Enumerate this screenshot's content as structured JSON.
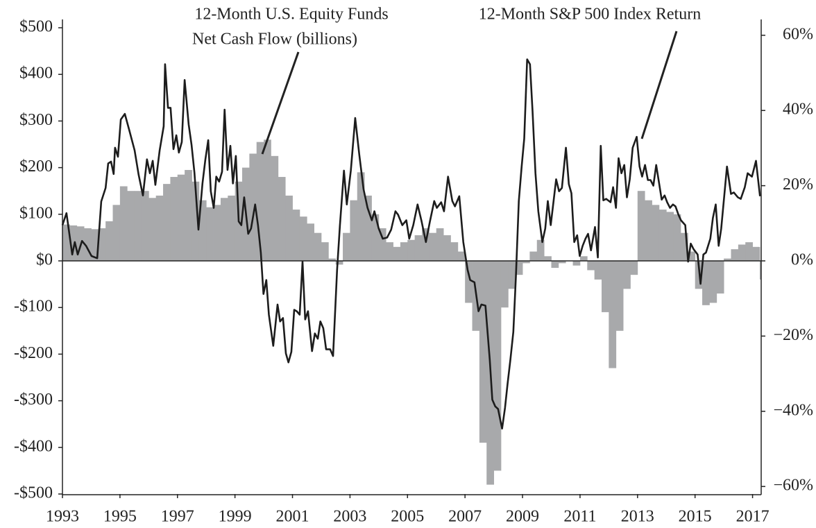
{
  "chart_data": {
    "type": "bar",
    "annotations": [
      {
        "lines": [
          "12-Month U.S. Equity Funds",
          "Net Cash Flow (billions)"
        ]
      },
      {
        "lines": [
          "12-Month S&P 500 Index Return"
        ]
      }
    ],
    "xlim": [
      1993,
      2017.3
    ],
    "xticks": [
      1993,
      1995,
      1997,
      1999,
      2001,
      2003,
      2005,
      2007,
      2009,
      2011,
      2013,
      2015,
      2017
    ],
    "ylim": [
      -500,
      500
    ],
    "yticks": [
      {
        "value": 500,
        "label": "$500"
      },
      {
        "value": 400,
        "label": "$400"
      },
      {
        "value": 300,
        "label": "$300"
      },
      {
        "value": 200,
        "label": "$200"
      },
      {
        "value": 100,
        "label": "$100"
      },
      {
        "value": 0,
        "label": "$0"
      },
      {
        "value": -100,
        "label": "-$100"
      },
      {
        "value": -200,
        "label": "-$200"
      },
      {
        "value": -300,
        "label": "-$300"
      },
      {
        "value": -400,
        "label": "-$400"
      },
      {
        "value": -500,
        "label": "-$500"
      }
    ],
    "y2lim": [
      -62,
      62
    ],
    "y2ticks": [
      {
        "value": 60,
        "label": "60%"
      },
      {
        "value": 40,
        "label": "40%"
      },
      {
        "value": 20,
        "label": "20%"
      },
      {
        "value": 0,
        "label": "0%"
      },
      {
        "value": -20,
        "label": "−20%"
      },
      {
        "value": -40,
        "label": "−40%"
      },
      {
        "value": -60,
        "label": "−60%"
      }
    ],
    "series": [
      {
        "type": "bar",
        "color": "#a8a9ab",
        "x": [
          1993.0,
          1993.25,
          1993.5,
          1993.75,
          1994.0,
          1994.25,
          1994.5,
          1994.75,
          1995.0,
          1995.25,
          1995.5,
          1995.75,
          1996.0,
          1996.25,
          1996.5,
          1996.75,
          1997.0,
          1997.25,
          1997.5,
          1997.75,
          1998.0,
          1998.25,
          1998.5,
          1998.75,
          1999.0,
          1999.25,
          1999.5,
          1999.75,
          2000.0,
          2000.25,
          2000.5,
          2000.75,
          2001.0,
          2001.25,
          2001.5,
          2001.75,
          2002.0,
          2002.25,
          2002.5,
          2002.75,
          2003.0,
          2003.25,
          2003.5,
          2003.75,
          2004.0,
          2004.25,
          2004.5,
          2004.75,
          2005.0,
          2005.25,
          2005.5,
          2005.75,
          2006.0,
          2006.25,
          2006.5,
          2006.75,
          2007.0,
          2007.25,
          2007.5,
          2007.75,
          2008.0,
          2008.25,
          2008.5,
          2008.75,
          2009.0,
          2009.25,
          2009.5,
          2009.75,
          2010.0,
          2010.25,
          2010.5,
          2010.75,
          2011.0,
          2011.25,
          2011.5,
          2011.75,
          2012.0,
          2012.25,
          2012.5,
          2012.75,
          2013.0,
          2013.25,
          2013.5,
          2013.75,
          2014.0,
          2014.25,
          2014.5,
          2014.75,
          2015.0,
          2015.25,
          2015.5,
          2015.75,
          2016.0,
          2016.25,
          2016.5,
          2016.75,
          2017.0,
          2017.25
        ],
        "values": [
          78,
          76,
          74,
          70,
          68,
          70,
          85,
          120,
          160,
          150,
          150,
          150,
          135,
          140,
          165,
          180,
          185,
          195,
          170,
          130,
          115,
          120,
          135,
          140,
          170,
          200,
          230,
          255,
          260,
          225,
          180,
          140,
          110,
          95,
          80,
          60,
          40,
          5,
          -8,
          60,
          130,
          190,
          140,
          100,
          70,
          40,
          30,
          40,
          45,
          55,
          70,
          60,
          70,
          55,
          40,
          20,
          -90,
          -150,
          -390,
          -480,
          -450,
          -100,
          -60,
          -30,
          -5,
          20,
          45,
          10,
          -15,
          -5,
          0,
          -10,
          10,
          -20,
          -40,
          -110,
          -230,
          -150,
          -60,
          -30,
          150,
          130,
          120,
          110,
          105,
          100,
          60,
          20,
          -60,
          -95,
          -90,
          -70,
          5,
          25,
          35,
          40,
          30,
          -40
        ]
      },
      {
        "type": "line",
        "axis": "y2",
        "color": "#1c1c1c",
        "x": [
          1993.0,
          1993.14,
          1993.34,
          1993.43,
          1993.53,
          1993.68,
          1993.82,
          1994.01,
          1994.21,
          1994.35,
          1994.5,
          1994.59,
          1994.69,
          1994.78,
          1994.83,
          1994.93,
          1995.03,
          1995.17,
          1995.32,
          1995.51,
          1995.65,
          1995.8,
          1995.94,
          1996.04,
          1996.14,
          1996.23,
          1996.38,
          1996.52,
          1996.57,
          1996.67,
          1996.76,
          1996.86,
          1996.96,
          1997.05,
          1997.15,
          1997.25,
          1997.39,
          1997.49,
          1997.59,
          1997.73,
          1997.87,
          1997.97,
          1998.07,
          1998.16,
          1998.26,
          1998.35,
          1998.45,
          1998.55,
          1998.64,
          1998.74,
          1998.84,
          1998.93,
          1999.03,
          1999.13,
          1999.22,
          1999.32,
          1999.46,
          1999.56,
          1999.7,
          1999.8,
          1999.9,
          1999.99,
          2000.09,
          2000.18,
          2000.33,
          2000.48,
          2000.57,
          2000.67,
          2000.77,
          2000.86,
          2000.96,
          2001.06,
          2001.15,
          2001.25,
          2001.35,
          2001.44,
          2001.54,
          2001.68,
          2001.78,
          2001.88,
          2001.97,
          2002.07,
          2002.17,
          2002.31,
          2002.41,
          2002.55,
          2002.65,
          2002.79,
          2002.89,
          2003.03,
          2003.18,
          2003.32,
          2003.47,
          2003.61,
          2003.76,
          2003.85,
          2004.0,
          2004.14,
          2004.29,
          2004.43,
          2004.58,
          2004.67,
          2004.82,
          2004.96,
          2005.06,
          2005.2,
          2005.35,
          2005.49,
          2005.64,
          2005.78,
          2005.93,
          2006.02,
          2006.17,
          2006.27,
          2006.41,
          2006.56,
          2006.65,
          2006.8,
          2006.94,
          2007.09,
          2007.18,
          2007.33,
          2007.47,
          2007.57,
          2007.71,
          2007.86,
          2007.95,
          2008.05,
          2008.15,
          2008.29,
          2008.39,
          2008.48,
          2008.58,
          2008.68,
          2008.77,
          2008.87,
          2008.97,
          2009.06,
          2009.16,
          2009.26,
          2009.35,
          2009.45,
          2009.55,
          2009.69,
          2009.79,
          2009.88,
          2009.98,
          2010.08,
          2010.17,
          2010.27,
          2010.37,
          2010.51,
          2010.61,
          2010.7,
          2010.8,
          2010.9,
          2010.99,
          2011.09,
          2011.19,
          2011.28,
          2011.38,
          2011.52,
          2011.62,
          2011.72,
          2011.81,
          2011.91,
          2012.06,
          2012.15,
          2012.25,
          2012.34,
          2012.44,
          2012.54,
          2012.63,
          2012.73,
          2012.83,
          2012.97,
          2013.07,
          2013.16,
          2013.26,
          2013.36,
          2013.45,
          2013.55,
          2013.65,
          2013.74,
          2013.84,
          2013.94,
          2014.03,
          2014.13,
          2014.23,
          2014.32,
          2014.42,
          2014.51,
          2014.66,
          2014.76,
          2014.85,
          2014.95,
          2015.09,
          2015.19,
          2015.29,
          2015.38,
          2015.53,
          2015.62,
          2015.72,
          2015.82,
          2015.91,
          2016.11,
          2016.25,
          2016.35,
          2016.49,
          2016.59,
          2016.73,
          2016.83,
          2016.98,
          2017.12,
          2017.26
        ],
        "values": [
          9.5,
          12.7,
          1.7,
          5.0,
          1.7,
          5.3,
          4.0,
          1.3,
          0.7,
          15.8,
          19.4,
          25.9,
          26.4,
          23.1,
          30.1,
          27.7,
          37.6,
          39.1,
          34.9,
          29.4,
          22.9,
          17.4,
          27.0,
          23.3,
          26.6,
          20.2,
          29.4,
          35.8,
          52.3,
          40.7,
          40.7,
          29.7,
          33.4,
          28.8,
          31.6,
          48.1,
          36.3,
          30.8,
          23.5,
          8.3,
          20.6,
          27.0,
          32.1,
          18.5,
          14.1,
          22.4,
          21.1,
          23.7,
          40.2,
          24.2,
          30.6,
          20.6,
          27.9,
          10.5,
          9.5,
          16.9,
          7.2,
          8.6,
          15.0,
          9.5,
          2.2,
          -8.8,
          -5.1,
          -14.3,
          -22.6,
          -11.6,
          -16.1,
          -15.2,
          -24.6,
          -27.0,
          -24.2,
          -13.0,
          -13.4,
          -14.3,
          -0.2,
          -15.6,
          -13.4,
          -24.0,
          -19.3,
          -20.7,
          -16.1,
          -17.9,
          -23.5,
          -23.5,
          -25.3,
          -2.4,
          9.5,
          24.0,
          15.0,
          24.0,
          38.0,
          28.4,
          19.1,
          14.1,
          10.8,
          13.2,
          8.6,
          5.9,
          6.2,
          8.3,
          13.2,
          12.3,
          9.5,
          10.8,
          5.9,
          9.5,
          15.0,
          10.5,
          5.0,
          10.5,
          15.9,
          14.1,
          15.6,
          13.2,
          22.4,
          15.9,
          14.5,
          17.2,
          5.0,
          -2.4,
          -5.1,
          -5.7,
          -13.4,
          -11.6,
          -11.9,
          -26.2,
          -36.9,
          -38.7,
          -39.4,
          -44.6,
          -39.1,
          -32.7,
          -26.2,
          -18.9,
          -4.2,
          15.9,
          25.1,
          32.5,
          53.6,
          52.3,
          39.8,
          23.3,
          13.2,
          5.0,
          8.6,
          15.9,
          9.5,
          15.9,
          21.7,
          18.5,
          19.4,
          30.1,
          20.4,
          18.0,
          5.0,
          6.8,
          1.3,
          4.0,
          5.9,
          7.2,
          2.8,
          9.0,
          0.9,
          30.6,
          16.1,
          16.5,
          15.6,
          19.6,
          14.1,
          27.3,
          23.3,
          25.5,
          16.9,
          21.7,
          30.1,
          33.0,
          25.1,
          22.4,
          25.5,
          21.5,
          21.5,
          20.0,
          25.5,
          21.1,
          16.3,
          17.4,
          15.6,
          14.1,
          15.0,
          14.5,
          12.3,
          10.8,
          9.5,
          -0.2,
          4.6,
          3.1,
          1.7,
          -6.1,
          1.7,
          2.2,
          5.9,
          11.4,
          15.0,
          4.0,
          8.6,
          25.1,
          17.8,
          18.2,
          16.9,
          16.5,
          19.6,
          23.3,
          22.4,
          26.6,
          17.2
        ]
      }
    ]
  }
}
